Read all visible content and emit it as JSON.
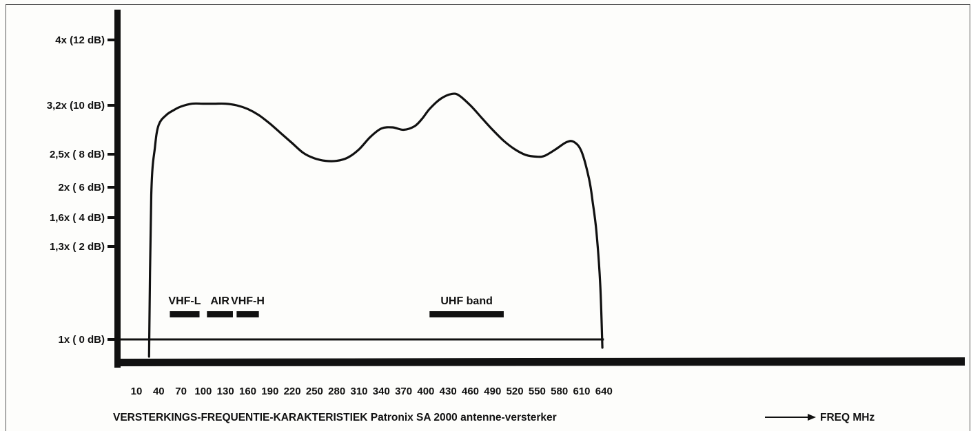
{
  "chart_data": {
    "type": "line",
    "title": "VERSTERKINGS-FREQUENTIE-KARAKTERISTIEK  Patronix SA 2000 antenne-versterker",
    "xlabel": "FREQ MHz",
    "ylabel": "",
    "x_ticks": [
      10,
      40,
      70,
      100,
      130,
      160,
      190,
      220,
      250,
      280,
      310,
      340,
      370,
      400,
      430,
      460,
      490,
      520,
      550,
      580,
      610,
      640
    ],
    "y_ticks": [
      {
        "db": 0,
        "label": "1x ( 0 dB)"
      },
      {
        "db": 2,
        "label": "1,3x ( 2 dB)"
      },
      {
        "db": 4,
        "label": "1,6x ( 4 dB)"
      },
      {
        "db": 6,
        "label": "2x ( 6 dB)"
      },
      {
        "db": 8,
        "label": "2,5x ( 8 dB)"
      },
      {
        "db": 10,
        "label": "3,2x (10 dB)"
      },
      {
        "db": 12,
        "label": "4x (12 dB)"
      }
    ],
    "xlim": [
      10,
      640
    ],
    "ylim_db": [
      0,
      12
    ],
    "series": [
      {
        "x": [
          27,
          30,
          35,
          40,
          50,
          60,
          70,
          85,
          100,
          115,
          130,
          145,
          160,
          175,
          190,
          205,
          220,
          235,
          250,
          265,
          280,
          295,
          310,
          325,
          340,
          355,
          370,
          385,
          395,
          405,
          420,
          435,
          445,
          460,
          475,
          490,
          505,
          520,
          535,
          550,
          560,
          575,
          590,
          600,
          610,
          620,
          625,
          630,
          635,
          638
        ],
        "y": [
          0,
          5.5,
          8.3,
          9.2,
          9.6,
          9.8,
          9.95,
          10.05,
          10.05,
          10.05,
          10.05,
          10.0,
          9.85,
          9.6,
          9.25,
          8.85,
          8.45,
          8.05,
          7.75,
          7.6,
          7.6,
          7.8,
          8.2,
          8.7,
          9.05,
          9.1,
          9.0,
          9.15,
          9.45,
          9.85,
          10.2,
          10.35,
          10.3,
          10.0,
          9.5,
          9.0,
          8.55,
          8.2,
          7.95,
          7.85,
          7.9,
          8.2,
          8.5,
          8.5,
          8.1,
          6.5,
          5.0,
          3.0,
          1.2,
          0
        ]
      }
    ],
    "bands": [
      {
        "label": "VHF-L",
        "from": 55,
        "to": 95
      },
      {
        "label": "AIR",
        "from": 105,
        "to": 140
      },
      {
        "label": "VHF-H",
        "from": 145,
        "to": 175
      },
      {
        "label": "UHF band",
        "from": 405,
        "to": 505
      }
    ],
    "grid": false,
    "legend": "none"
  }
}
